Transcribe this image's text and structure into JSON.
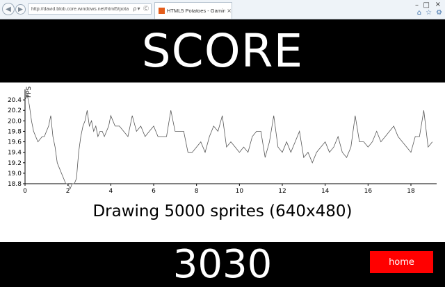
{
  "browser": {
    "address_url": "http://david.blob.core.windows.net/html5/potat",
    "address_icons": "ρ▾ Ⓒ",
    "tab_title": "HTML5 Potatoes - Gaming ...",
    "tab_close": "×",
    "back_glyph": "◀",
    "forward_glyph": "▶",
    "window_min": "–",
    "window_max": "□",
    "window_close": "×",
    "tool_icons": [
      "home-icon",
      "star-icon",
      "gear-icon"
    ],
    "tool_glyphs": [
      "⌂",
      "☆",
      "⚙"
    ]
  },
  "header": {
    "title": "SCORE"
  },
  "chart_caption": "Drawing 5000 sprites (640x480)",
  "bottom": {
    "score": "3030",
    "home_label": "home",
    "home_color": "#ff0000"
  },
  "chart_data": {
    "type": "line",
    "title": "",
    "xlabel": "",
    "ylabel": "FPS",
    "xlim": [
      0,
      19.2
    ],
    "ylim": [
      18.8,
      20.6
    ],
    "x_ticks": [
      0,
      2,
      4,
      6,
      8,
      10,
      12,
      14,
      16,
      18
    ],
    "y_ticks": [
      18.8,
      19.0,
      19.2,
      19.4,
      19.6,
      19.8,
      20.0,
      20.2,
      20.4
    ],
    "grid": false,
    "series": [
      {
        "x": [
          0,
          0.1,
          0.2,
          0.3,
          0.4,
          0.5,
          0.6,
          0.8,
          0.9,
          1.0,
          1.1,
          1.2,
          1.3,
          1.4,
          1.5,
          1.6,
          1.7,
          1.8,
          1.9,
          2.0,
          2.1,
          2.2,
          2.3,
          2.4,
          2.5,
          2.6,
          2.7,
          2.8,
          2.9,
          3.0,
          3.1,
          3.2,
          3.3,
          3.4,
          3.5,
          3.6,
          3.7,
          3.8,
          3.9,
          4.0,
          4.2,
          4.4,
          4.6,
          4.8,
          5.0,
          5.2,
          5.4,
          5.6,
          5.8,
          6.0,
          6.2,
          6.4,
          6.6,
          6.8,
          7.0,
          7.2,
          7.4,
          7.6,
          7.8,
          8.0,
          8.2,
          8.4,
          8.6,
          8.8,
          9.0,
          9.2,
          9.4,
          9.6,
          9.8,
          10.0,
          10.2,
          10.4,
          10.6,
          10.8,
          11.0,
          11.2,
          11.4,
          11.6,
          11.8,
          12.0,
          12.2,
          12.4,
          12.6,
          12.8,
          13.0,
          13.2,
          13.4,
          13.6,
          13.8,
          14.0,
          14.2,
          14.4,
          14.6,
          14.8,
          15.0,
          15.2,
          15.4,
          15.6,
          15.8,
          16.0,
          16.2,
          16.4,
          16.6,
          16.8,
          17.0,
          17.2,
          17.4,
          17.6,
          17.8,
          18.0,
          18.2,
          18.4,
          18.6,
          18.8,
          19.0
        ],
        "values": [
          20.4,
          20.5,
          20.3,
          20.0,
          19.8,
          19.7,
          19.6,
          19.7,
          19.7,
          19.8,
          19.9,
          20.1,
          19.7,
          19.5,
          19.2,
          19.1,
          19.0,
          18.9,
          18.8,
          18.8,
          18.7,
          18.8,
          18.8,
          18.9,
          19.4,
          19.7,
          19.9,
          20.0,
          20.2,
          19.9,
          20.0,
          19.8,
          19.9,
          19.7,
          19.8,
          19.8,
          19.7,
          19.8,
          19.9,
          20.1,
          19.9,
          19.9,
          19.8,
          19.7,
          20.1,
          19.8,
          19.9,
          19.7,
          19.8,
          19.9,
          19.7,
          19.7,
          19.7,
          20.2,
          19.8,
          19.8,
          19.8,
          19.4,
          19.4,
          19.5,
          19.6,
          19.4,
          19.7,
          19.9,
          19.8,
          20.1,
          19.5,
          19.6,
          19.5,
          19.4,
          19.5,
          19.4,
          19.7,
          19.8,
          19.8,
          19.3,
          19.6,
          20.1,
          19.5,
          19.4,
          19.6,
          19.4,
          19.6,
          19.8,
          19.3,
          19.4,
          19.2,
          19.4,
          19.5,
          19.6,
          19.4,
          19.5,
          19.7,
          19.4,
          19.3,
          19.5,
          20.1,
          19.6,
          19.6,
          19.5,
          19.6,
          19.8,
          19.6,
          19.7,
          19.8,
          19.9,
          19.7,
          19.6,
          19.5,
          19.4,
          19.7,
          19.7,
          20.2,
          19.5,
          19.6
        ]
      }
    ]
  }
}
